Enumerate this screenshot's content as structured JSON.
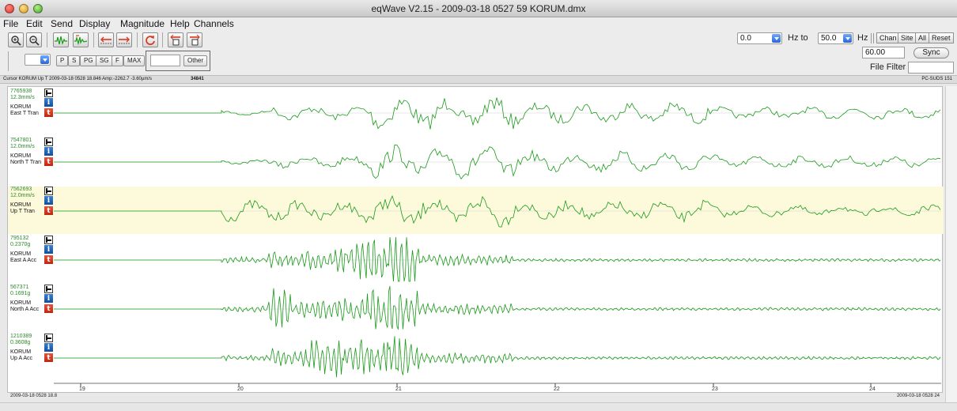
{
  "window": {
    "title": "eqWave V2.15 - 2009-03-18 0527 59 KORUM.dmx"
  },
  "menu": [
    "File",
    "Edit",
    "Send",
    "Display",
    "Magnitude",
    "Help",
    "Channels"
  ],
  "toolbar": {
    "phase_buttons": [
      "P",
      "S",
      "PG",
      "SG",
      "F",
      "MAX"
    ],
    "other_label": "Other",
    "other_value": "",
    "phase_select": ""
  },
  "filter": {
    "low": "0.0",
    "hz_to": "Hz to",
    "high": "50.0",
    "hz": "Hz",
    "sort_buttons": [
      "Chan",
      "Site",
      "All",
      "Reset"
    ],
    "duration": "60.00",
    "sync_label": "Sync",
    "file_filter_label": "File Filter",
    "file_filter_value": ""
  },
  "status": {
    "cursor": "Cursor KORUM Up T  2009-03-18 0528 18.846  Amp:-2262.7 -3.60µm/s",
    "marker": "34841",
    "format": "PC-SUDS 151"
  },
  "channels": [
    {
      "count": "7765938",
      "scale": "12.3mm/s",
      "station": "KORUM",
      "component": "East T Tran"
    },
    {
      "count": "7547801",
      "scale": "12.0mm/s",
      "station": "KORUM",
      "component": "North T Tran"
    },
    {
      "count": "7562693",
      "scale": "12.0mm/s",
      "station": "KORUM",
      "component": "Up T Tran",
      "selected": true
    },
    {
      "count": "795132",
      "scale": "0.2370g",
      "station": "KORUM",
      "component": "East A Acc"
    },
    {
      "count": "567371",
      "scale": "0.1691g",
      "station": "KORUM",
      "component": "North A Acc"
    },
    {
      "count": "1210389",
      "scale": "0.3608g",
      "station": "KORUM",
      "component": "Up A Acc"
    }
  ],
  "axis": {
    "ticks": [
      "19",
      "20",
      "21",
      "22",
      "23",
      "24"
    ],
    "start_time": "2009-03-18 0528 18.8",
    "end_time": "2009-03-18 0528 24"
  },
  "colors": {
    "trace": "#1a9a1a",
    "selected_row": "#fdfadc",
    "info_icon": "#1d5fb5",
    "t_icon": "#d9381e"
  }
}
